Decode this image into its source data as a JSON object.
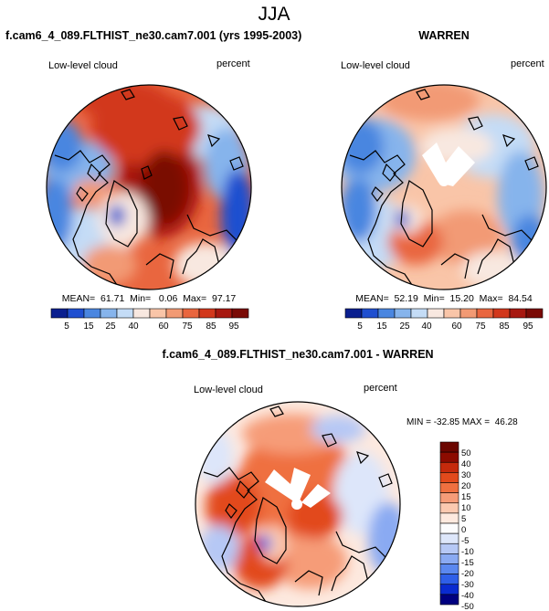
{
  "chart_data": {
    "type": "heatmap",
    "title": "JJA",
    "variable_label": "Low-level cloud",
    "units_label": "percent",
    "panels": [
      {
        "id": "model",
        "title": "f.cam6_4_089.FLTHIST_ne30.cam7.001 (yrs 1995-2003)",
        "variable_label": "Low-level cloud",
        "units_label": "percent",
        "stats_text": "MEAN=  61.71  Min=   0.06  Max=  97.17",
        "mean": 61.71,
        "min": 0.06,
        "max": 97.17,
        "colorbar_labels": [
          "5",
          "15",
          "25",
          "40",
          "60",
          "75",
          "85",
          "95"
        ]
      },
      {
        "id": "obs",
        "title": "WARREN",
        "variable_label": "Low-level cloud",
        "units_label": "percent",
        "stats_text": "MEAN=  52.19  Min=  15.20  Max=  84.54",
        "mean": 52.19,
        "min": 15.2,
        "max": 84.54,
        "colorbar_labels": [
          "5",
          "15",
          "25",
          "40",
          "60",
          "75",
          "85",
          "95"
        ]
      },
      {
        "id": "diff",
        "title": "f.cam6_4_089.FLTHIST_ne30.cam7.001 - WARREN",
        "variable_label": "Low-level cloud",
        "units_label": "percent",
        "stats_text": "MIN = -32.85 MAX =  46.28",
        "min": -32.85,
        "max": 46.28,
        "colorbar_labels": [
          "50",
          "40",
          "30",
          "20",
          "15",
          "10",
          "5",
          "0",
          "-5",
          "-10",
          "-15",
          "-20",
          "-30",
          "-40",
          "-50"
        ]
      }
    ]
  },
  "colors": {
    "abs_scale": [
      "#0a1f8f",
      "#1f4fd0",
      "#4a86e0",
      "#86b4ec",
      "#c4dcf6",
      "#f8e8e0",
      "#f9c5a8",
      "#f29a74",
      "#e9663f",
      "#d2381c",
      "#a71810",
      "#7a0a05"
    ],
    "diff_scale": [
      "#000080",
      "#0a2bd0",
      "#2f5fe8",
      "#5b88ef",
      "#8aaaf2",
      "#b6c8f5",
      "#dde6fa",
      "#fbfcfe",
      "#fde9df",
      "#fbc9b0",
      "#f69c78",
      "#ef7040",
      "#e24a1c",
      "#c52a0c",
      "#8c0b00",
      "#6b0600"
    ],
    "coast": "#000000",
    "border": "#000000"
  }
}
